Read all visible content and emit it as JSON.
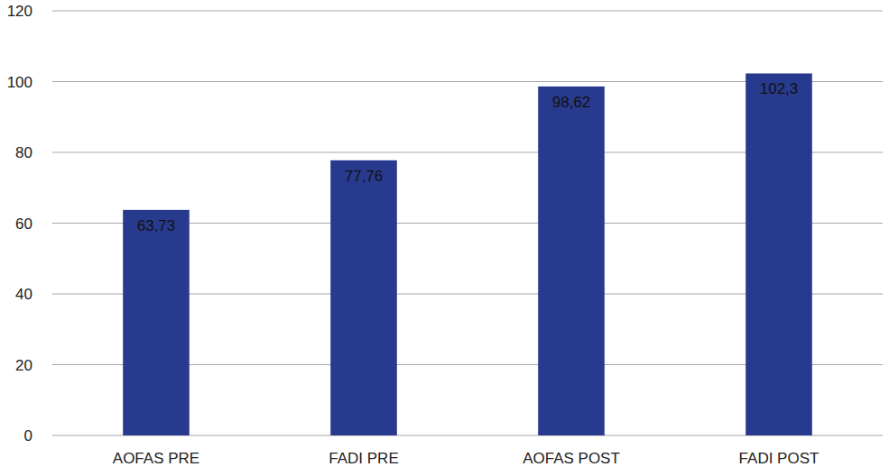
{
  "chart_data": {
    "type": "bar",
    "categories": [
      "AOFAS PRE",
      "FADI PRE",
      "AOFAS POST",
      "FADI POST"
    ],
    "values": [
      63.73,
      77.76,
      98.62,
      102.3
    ],
    "value_labels": [
      "63,73",
      "77,76",
      "98,62",
      "102,3"
    ],
    "color": "#283a8e",
    "ylim": [
      0,
      120
    ],
    "yticks": [
      0,
      20,
      40,
      60,
      80,
      100,
      120
    ],
    "grid": true,
    "data_labels": true
  }
}
